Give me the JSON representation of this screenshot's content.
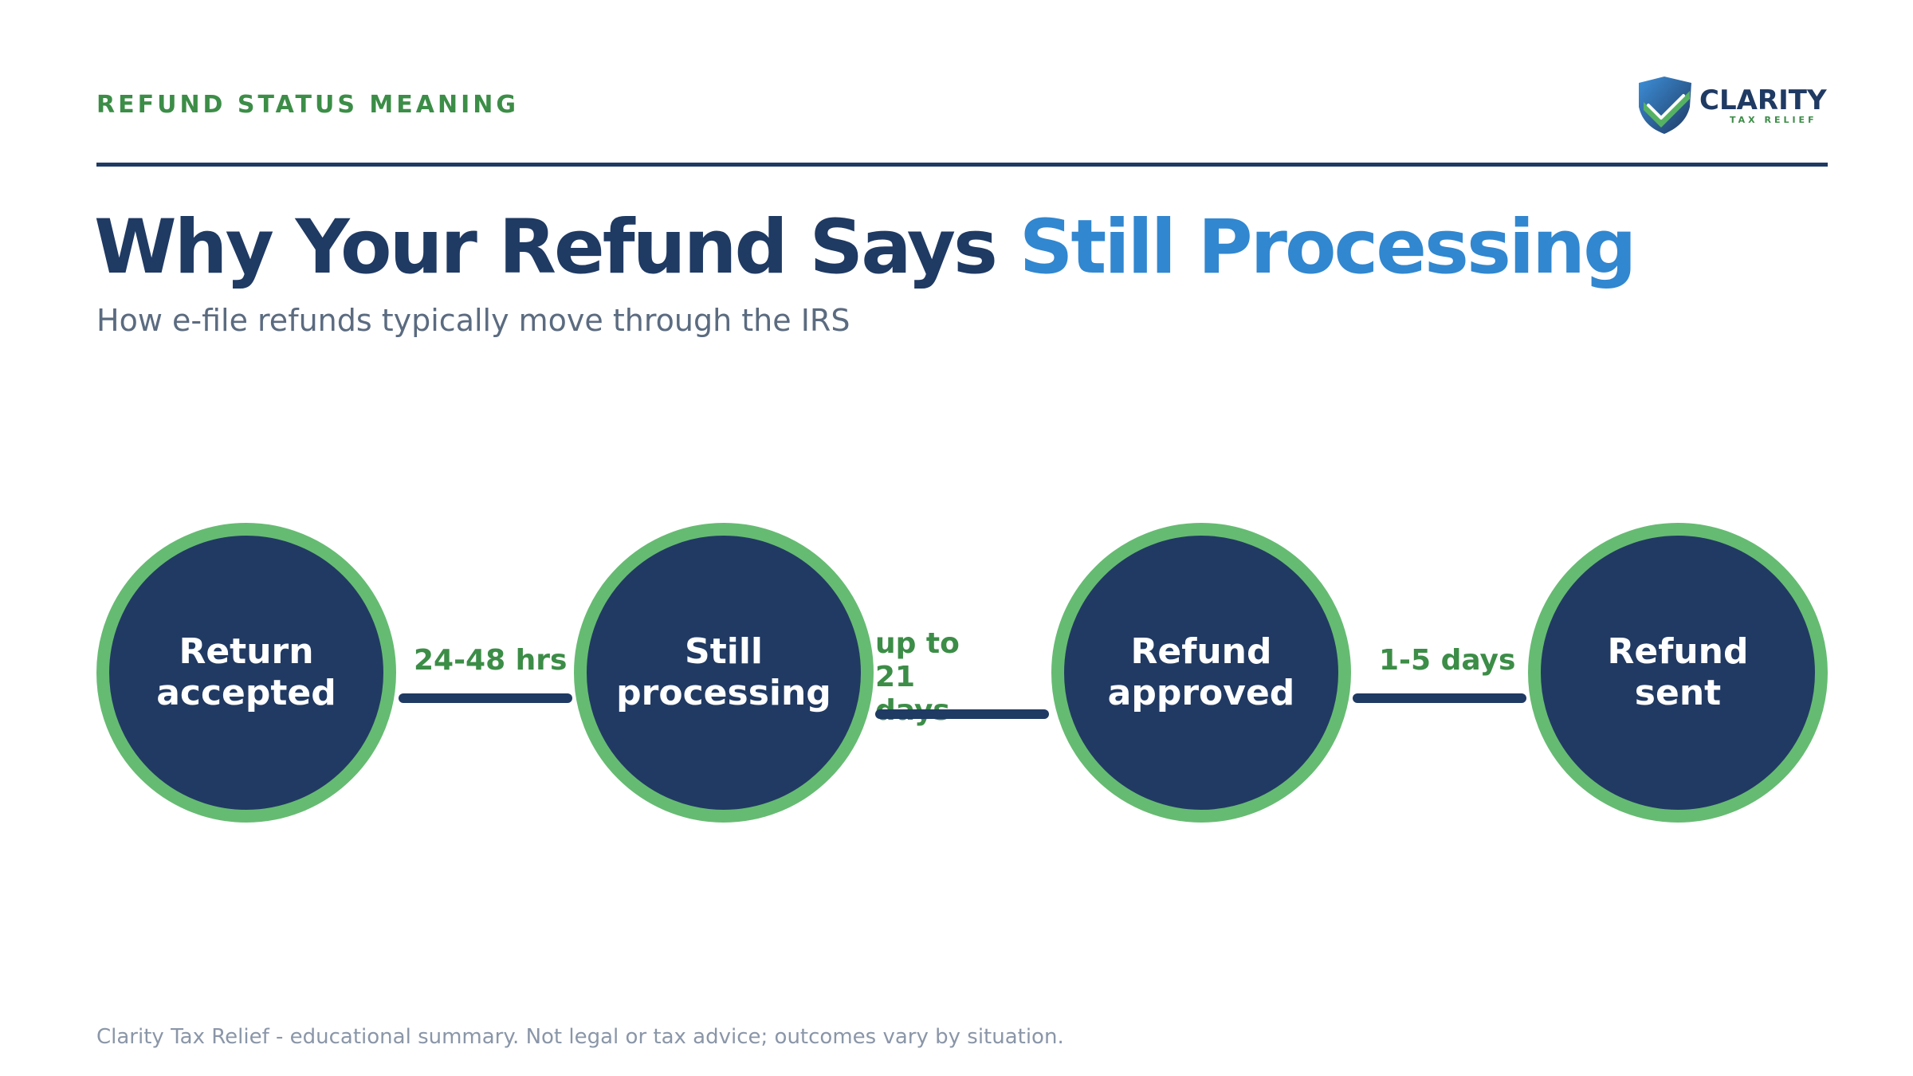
{
  "header": {
    "eyebrow": "REFUND STATUS MEANING",
    "logo": {
      "name": "CLARITY",
      "tagline": "TAX RELIEF",
      "icon": "shield-check-icon"
    }
  },
  "title": {
    "main": "Why Your Refund Says ",
    "accent": "Still Processing"
  },
  "subtitle": "How e-file refunds typically move through the IRS",
  "steps": [
    {
      "label": "Return accepted"
    },
    {
      "label": "Still processing"
    },
    {
      "label": "Refund approved"
    },
    {
      "label": "Refund sent"
    }
  ],
  "connectors": [
    {
      "duration": "24-48 hrs"
    },
    {
      "duration": "up to 21 days"
    },
    {
      "duration": "1-5 days"
    }
  ],
  "footer": {
    "disclaimer": "Clarity Tax Relief - educational summary. Not legal or tax advice; outcomes vary by situation."
  },
  "colors": {
    "navy": "#1f3a63",
    "accent_blue": "#3187d0",
    "green": "#66bb72",
    "green_text": "#3c8d47"
  }
}
